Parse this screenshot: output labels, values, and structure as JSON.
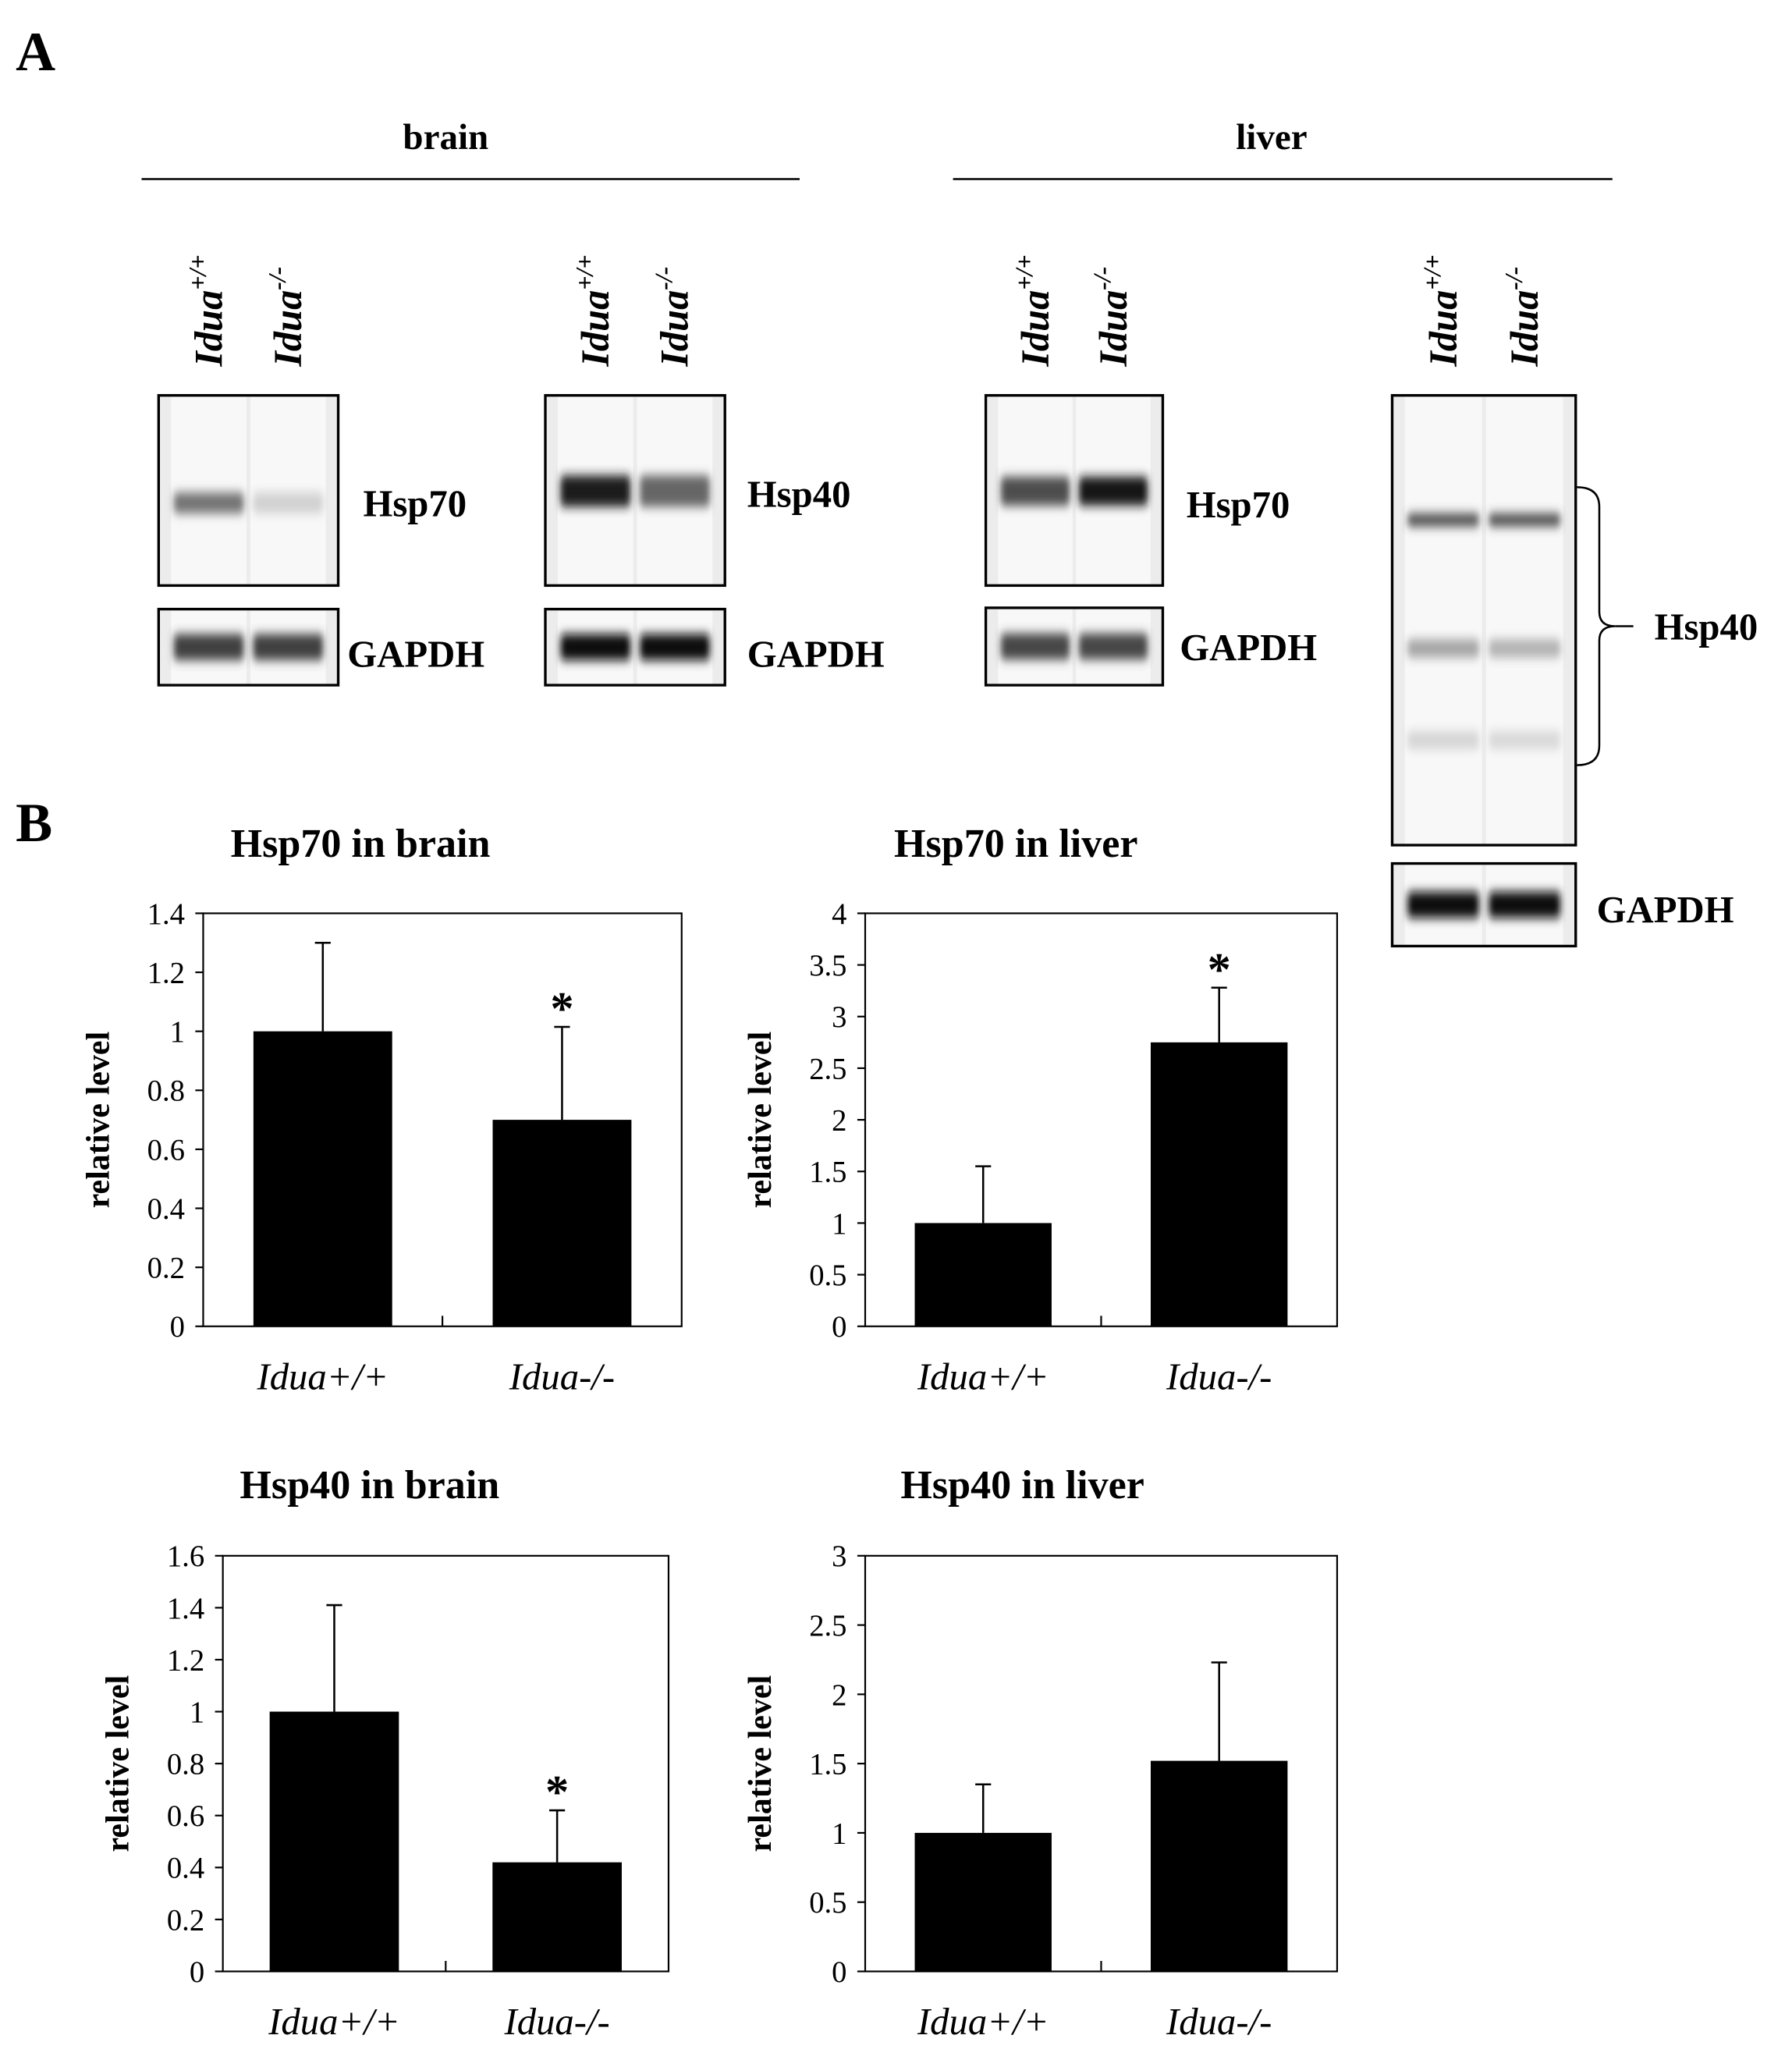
{
  "panel_labels": [
    "A",
    "B"
  ],
  "groups": [
    "brain",
    "liver"
  ],
  "blots": [
    {
      "lanes": [
        {
          "gene": "Idua",
          "genotype": "+/+"
        },
        {
          "gene": "Idua",
          "genotype": "-/-"
        }
      ],
      "target": "Hsp70",
      "loading_control": "GAPDH"
    },
    {
      "lanes": [
        {
          "gene": "Idua",
          "genotype": "+/+"
        },
        {
          "gene": "Idua",
          "genotype": "-/-"
        }
      ],
      "target": "Hsp40",
      "loading_control": "GAPDH"
    },
    {
      "lanes": [
        {
          "gene": "Idua",
          "genotype": "+/+"
        },
        {
          "gene": "Idua",
          "genotype": "-/-"
        }
      ],
      "target": "Hsp70",
      "loading_control": "GAPDH"
    },
    {
      "lanes": [
        {
          "gene": "Idua",
          "genotype": "+/+"
        },
        {
          "gene": "Idua",
          "genotype": "-/-"
        }
      ],
      "target": "Hsp40",
      "loading_control": "GAPDH"
    }
  ],
  "chart_data": [
    {
      "type": "bar",
      "title": "Hsp70 in brain",
      "y_label": "relative level",
      "categories": [
        "Idua+/+",
        "Idua-/-"
      ],
      "values": [
        1,
        0.7
      ],
      "errors": [
        0.3,
        0.315
      ],
      "significance": [
        null,
        "*"
      ],
      "color": "#000000",
      "ylim": [
        0,
        1.4
      ],
      "yticks": [
        0,
        0.2,
        0.4,
        0.6,
        0.8,
        1,
        1.2,
        1.4
      ]
    },
    {
      "type": "bar",
      "title": "Hsp70 in liver",
      "y_label": "relative level",
      "categories": [
        "Idua+/+",
        "Idua-/-"
      ],
      "values": [
        1,
        2.75
      ],
      "errors": [
        0.55,
        0.53
      ],
      "significance": [
        null,
        "*"
      ],
      "color": "#000000",
      "ylim": [
        0,
        4
      ],
      "yticks": [
        0,
        0.5,
        1,
        1.5,
        2,
        2.5,
        3,
        3.5,
        4
      ]
    },
    {
      "type": "bar",
      "title": "Hsp40 in brain",
      "y_label": "relative level",
      "categories": [
        "Idua+/+",
        "Idua-/-"
      ],
      "values": [
        1,
        0.42
      ],
      "errors": [
        0.41,
        0.2
      ],
      "significance": [
        null,
        "*"
      ],
      "color": "#000000",
      "ylim": [
        0,
        1.6
      ],
      "yticks": [
        0,
        0.2,
        0.4,
        0.6,
        0.8,
        1,
        1.2,
        1.4,
        1.6
      ]
    },
    {
      "type": "bar",
      "title": "Hsp40 in liver",
      "y_label": "relative level",
      "categories": [
        "Idua+/+",
        "Idua-/-"
      ],
      "values": [
        1,
        1.52
      ],
      "errors": [
        0.35,
        0.71
      ],
      "significance": [
        null,
        null
      ],
      "color": "#000000",
      "ylim": [
        0,
        3
      ],
      "yticks": [
        0,
        0.5,
        1,
        1.5,
        2,
        2.5,
        3
      ]
    }
  ]
}
